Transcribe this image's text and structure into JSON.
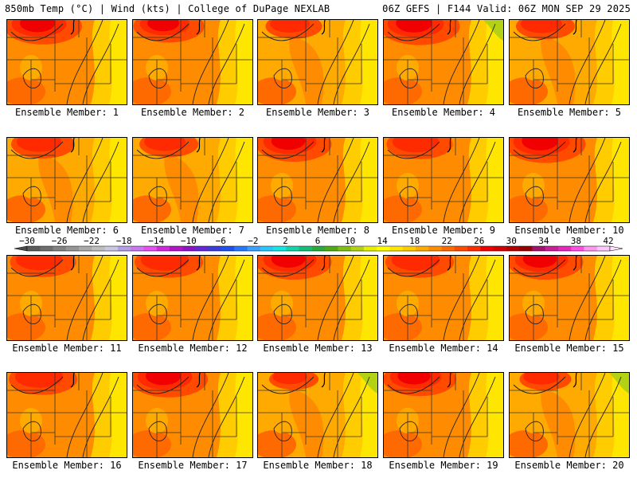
{
  "header": {
    "left": "850mb Temp (°C) | Wind (kts) | College of DuPage NEXLAB",
    "right": "06Z GEFS | F144 Valid: 06Z MON SEP 29 2025"
  },
  "members": [
    {
      "label": "Ensemble Member: 1",
      "warm": 0.8
    },
    {
      "label": "Ensemble Member: 2",
      "warm": 0.65
    },
    {
      "label": "Ensemble Member: 3",
      "warm": 0.35
    },
    {
      "label": "Ensemble Member: 4",
      "warm": 0.85
    },
    {
      "label": "Ensemble Member: 5",
      "warm": 0.4
    },
    {
      "label": "Ensemble Member: 6",
      "warm": 0.5
    },
    {
      "label": "Ensemble Member: 7",
      "warm": 0.4
    },
    {
      "label": "Ensemble Member: 8",
      "warm": 0.75
    },
    {
      "label": "Ensemble Member: 9",
      "warm": 0.55
    },
    {
      "label": "Ensemble Member: 10",
      "warm": 0.85
    },
    {
      "label": "Ensemble Member: 11",
      "warm": 0.55
    },
    {
      "label": "Ensemble Member: 12",
      "warm": 0.6
    },
    {
      "label": "Ensemble Member: 13",
      "warm": 0.75
    },
    {
      "label": "Ensemble Member: 14",
      "warm": 0.6
    },
    {
      "label": "Ensemble Member: 15",
      "warm": 0.75
    },
    {
      "label": "Ensemble Member: 16",
      "warm": 0.6
    },
    {
      "label": "Ensemble Member: 17",
      "warm": 0.8
    },
    {
      "label": "Ensemble Member: 18",
      "warm": 0.2
    },
    {
      "label": "Ensemble Member: 19",
      "warm": 0.7
    },
    {
      "label": "Ensemble Member: 20",
      "warm": 0.25
    }
  ],
  "colorbar": {
    "ticks": [
      "−30",
      "−26",
      "−22",
      "−18",
      "−14",
      "−10",
      "−6",
      "−2",
      "2",
      "6",
      "10",
      "14",
      "18",
      "22",
      "26",
      "30",
      "34",
      "38",
      "42"
    ],
    "colors": [
      "#5a5a5a",
      "#6e6e6e",
      "#828282",
      "#969696",
      "#aaaaaa",
      "#bebebe",
      "#c8c8e6",
      "#b4a0e6",
      "#c878f0",
      "#e650f0",
      "#d228dc",
      "#b414c8",
      "#8c14c8",
      "#6428dc",
      "#3c3cdc",
      "#1e50f0",
      "#2878ff",
      "#3ca0ff",
      "#28c8ff",
      "#14e6e6",
      "#14d2aa",
      "#14be78",
      "#28aa3c",
      "#50aa14",
      "#82be14",
      "#b4d214",
      "#e6f000",
      "#ffff00",
      "#ffe600",
      "#ffcc00",
      "#ffaa00",
      "#ff8c00",
      "#ff6a00",
      "#ff4a00",
      "#ff2a00",
      "#f00000",
      "#d20000",
      "#b40000",
      "#960000",
      "#a0146e",
      "#c81e96",
      "#e628be",
      "#ff50e6",
      "#ff96f0",
      "#ffc8ff"
    ]
  }
}
